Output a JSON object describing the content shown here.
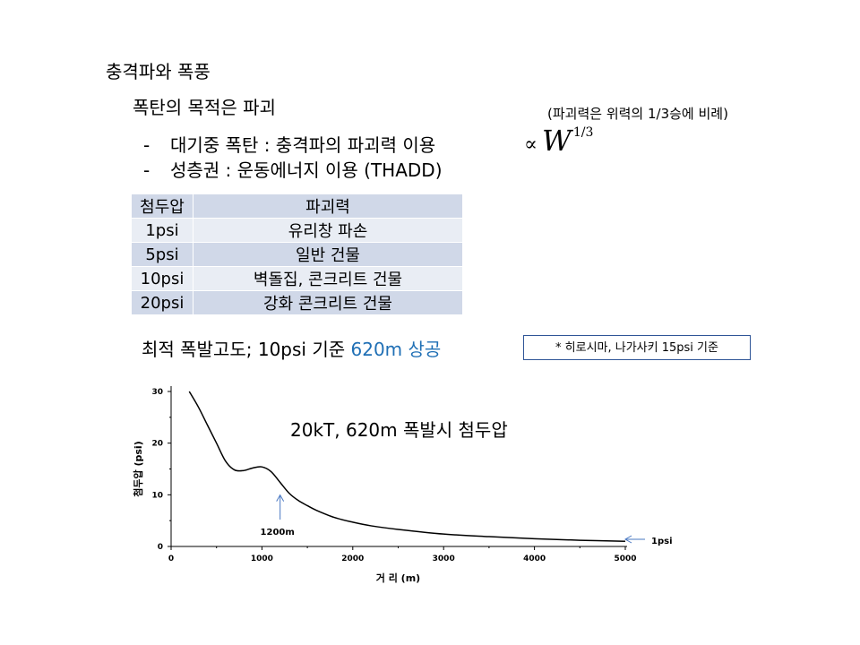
{
  "slide": {
    "title": "충격파와 폭풍",
    "subtitle": "폭탄의 목적은 파괴",
    "note": "(파괴력은 위력의 1/3승에 비례)",
    "bullets": [
      {
        "dash": "-",
        "text": "대기중 폭탄 : 충격파의 파괴력 이용"
      },
      {
        "dash": "-",
        "text": "성층권 : 운동에너지 이용 (THADD)"
      }
    ],
    "formula": {
      "prop": "∝",
      "base": "W",
      "exp": "1/3"
    }
  },
  "table": {
    "headers": [
      "첨두압",
      "파괴력"
    ],
    "rows": [
      [
        "1psi",
        "유리창 파손"
      ],
      [
        "5psi",
        "일반 건물"
      ],
      [
        "10psi",
        "벽돌집, 콘크리트 건물"
      ],
      [
        "20psi",
        "강화 콘크리트 건물"
      ]
    ],
    "colors": {
      "header": "#d0d8e8",
      "odd": "#e9edf4",
      "even": "#d0d8e8"
    }
  },
  "optimal": {
    "prefix": "최적 폭발고도; 10psi 기준 ",
    "highlight": "620m 상공",
    "highlight_color": "#1f6fb5"
  },
  "footnote": "* 히로시마, 나가사키 15psi 기준",
  "chart_data": {
    "type": "line",
    "title": "20kT, 620m 폭발시 첨두압",
    "xlabel": "거 리 (m)",
    "ylabel": "첨두압 (psi)",
    "xlim": [
      0,
      5000
    ],
    "ylim": [
      0,
      30
    ],
    "xticks": [
      0,
      1000,
      2000,
      3000,
      4000,
      5000
    ],
    "yticks": [
      0,
      10,
      20,
      30
    ],
    "grid": false,
    "series": [
      {
        "x": [
          200,
          300,
          400,
          500,
          600,
          700,
          800,
          900,
          1000,
          1100,
          1200,
          1300,
          1400,
          1500,
          1600,
          1800,
          2000,
          2200,
          2500,
          3000,
          3500,
          4000,
          4500,
          5000
        ],
        "y": [
          30,
          27,
          23.5,
          20,
          16.5,
          14.8,
          14.7,
          15.2,
          15.4,
          14.5,
          12.4,
          10.3,
          8.9,
          7.9,
          7.0,
          5.6,
          4.7,
          4.0,
          3.3,
          2.4,
          1.9,
          1.5,
          1.2,
          1.0
        ],
        "color": "#000000"
      }
    ],
    "annotations": [
      {
        "label": "1200m",
        "x": 1200,
        "y": 10.3,
        "kind": "arrow-up"
      },
      {
        "label": "1psi",
        "x": 5000,
        "y": 1.2,
        "kind": "arrow-left"
      }
    ]
  }
}
